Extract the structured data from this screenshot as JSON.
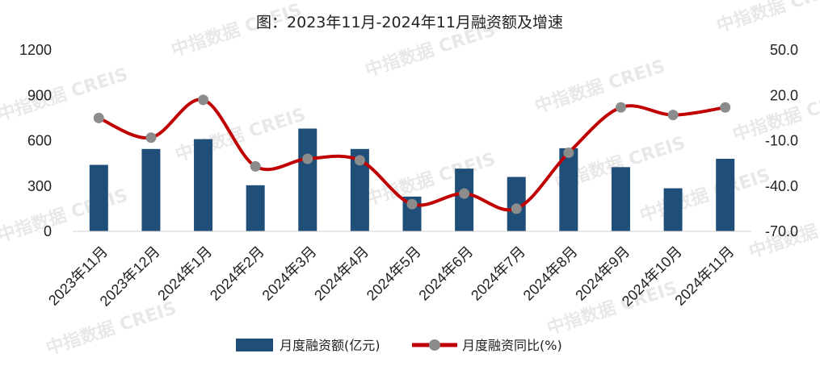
{
  "chart_data": {
    "type": "bar+line",
    "title": "图：2023年11月-2024年11月融资额及增速",
    "categories": [
      "2023年11月",
      "2023年12月",
      "2024年1月",
      "2024年2月",
      "2024年3月",
      "2024年4月",
      "2024年5月",
      "2024年6月",
      "2024年7月",
      "2024年8月",
      "2024年9月",
      "2024年10月",
      "2024年11月"
    ],
    "series": [
      {
        "name": "月度融资额(亿元)",
        "type": "bar",
        "axis": "left",
        "color": "#1f4e79",
        "values": [
          440,
          545,
          610,
          305,
          680,
          545,
          230,
          415,
          360,
          550,
          425,
          285,
          480
        ]
      },
      {
        "name": "月度融资同比(%)",
        "type": "line",
        "axis": "right",
        "color": "#c00000",
        "marker_color": "#8c8c8c",
        "values": [
          5,
          -8,
          17,
          -27,
          -22,
          -23,
          -52,
          -45,
          -55,
          -18,
          12,
          7,
          12
        ]
      }
    ],
    "left_axis": {
      "ticks": [
        "0",
        "300",
        "600",
        "900",
        "1200"
      ],
      "ylim": [
        0,
        1200
      ]
    },
    "right_axis": {
      "ticks": [
        "-70.0",
        "-40.0",
        "-10.0",
        "20.0",
        "50.0"
      ],
      "ylim": [
        -70,
        50
      ]
    },
    "legend": {
      "placement": "bottom",
      "bar_label": "月度融资额(亿元)",
      "line_label": "月度融资同比(%)"
    },
    "watermark": "中指数据 CREIS",
    "grid": false
  }
}
